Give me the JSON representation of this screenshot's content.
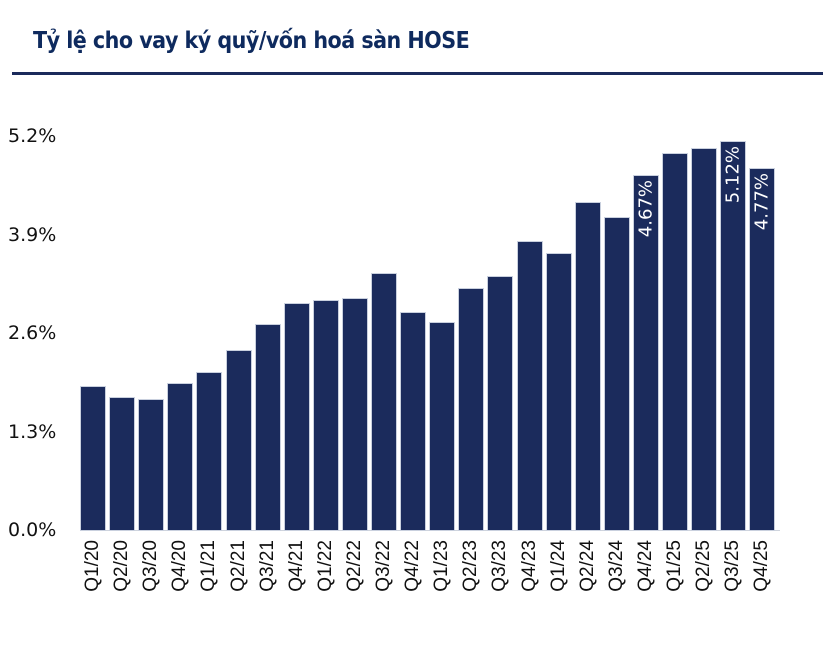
{
  "title": "Tỷ lệ cho vay ký quỹ/vốn hoá sàn HOSE",
  "colors": {
    "bar": "#1b2b5c",
    "title": "#0e2a5e",
    "rule": "#1b2a5b"
  },
  "chart_data": {
    "type": "bar",
    "title": "Tỷ lệ cho vay ký quỹ/vốn hoá sàn HOSE",
    "xlabel": "",
    "ylabel": "",
    "ylim": [
      0,
      5.2
    ],
    "yticks": [
      "0.0%",
      "1.3%",
      "2.6%",
      "3.9%",
      "5.2%"
    ],
    "ytick_values": [
      0,
      1.3,
      2.6,
      3.9,
      5.2
    ],
    "grid": false,
    "legend": null,
    "categories": [
      "Q1/20",
      "Q2/20",
      "Q3/20",
      "Q4/20",
      "Q1/21",
      "Q2/21",
      "Q3/21",
      "Q4/21",
      "Q1/22",
      "Q2/22",
      "Q3/22",
      "Q4/22",
      "Q1/23",
      "Q2/23",
      "Q3/23",
      "Q4/23",
      "Q1/24",
      "Q2/24",
      "Q3/24",
      "Q4/24",
      "Q1/25",
      "Q2/25",
      "Q3/25",
      "Q4/25"
    ],
    "values": [
      1.89,
      1.74,
      1.71,
      1.93,
      2.07,
      2.36,
      2.7,
      2.98,
      3.02,
      3.05,
      3.38,
      2.86,
      2.73,
      3.18,
      3.34,
      3.8,
      3.64,
      4.31,
      4.12,
      4.67,
      4.96,
      5.03,
      5.12,
      4.77
    ],
    "data_labels": {
      "Q4/24": "4.67%",
      "Q3/25": "5.12%",
      "Q4/25": "4.77%"
    }
  }
}
